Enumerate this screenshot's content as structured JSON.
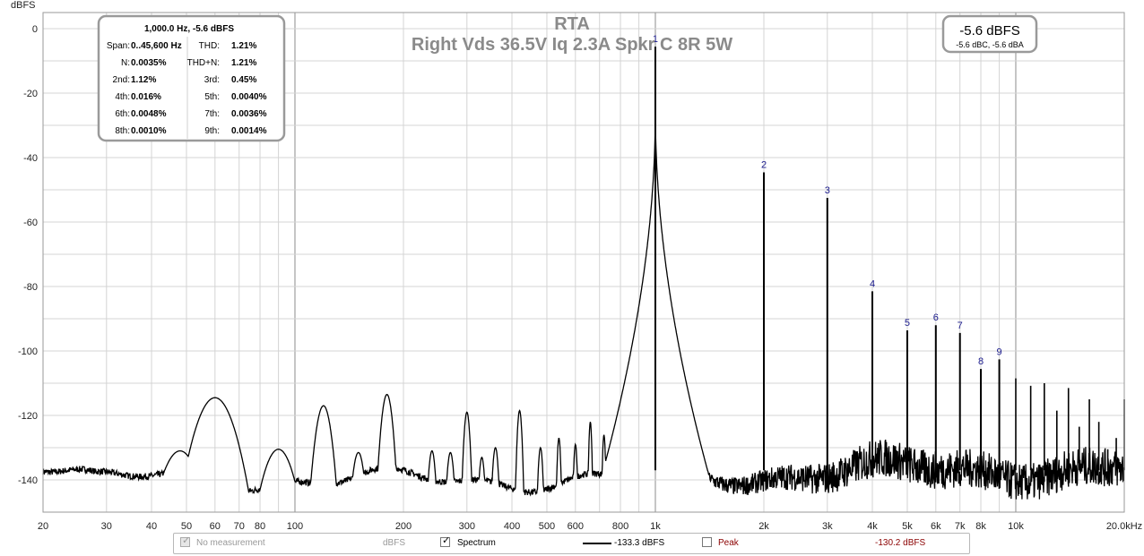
{
  "chart_data": {
    "type": "line",
    "title": "RTA",
    "subtitle": "Right Vds 36.5V Iq 2.3A Spkr C 8R 5W",
    "ylabel": "dBFS",
    "xlabel": "",
    "xscale": "log",
    "xlim": [
      20,
      20000
    ],
    "ylim": [
      -150,
      5
    ],
    "grid": true,
    "x_ticks": [
      {
        "v": 20,
        "label": "20"
      },
      {
        "v": 30,
        "label": "30"
      },
      {
        "v": 40,
        "label": "40"
      },
      {
        "v": 50,
        "label": "50"
      },
      {
        "v": 60,
        "label": "60"
      },
      {
        "v": 70,
        "label": "70"
      },
      {
        "v": 80,
        "label": "80"
      },
      {
        "v": 100,
        "label": "100"
      },
      {
        "v": 200,
        "label": "200"
      },
      {
        "v": 300,
        "label": "300"
      },
      {
        "v": 400,
        "label": "400"
      },
      {
        "v": 500,
        "label": "500"
      },
      {
        "v": 600,
        "label": "600"
      },
      {
        "v": 800,
        "label": "800"
      },
      {
        "v": 1000,
        "label": "1k"
      },
      {
        "v": 2000,
        "label": "2k"
      },
      {
        "v": 3000,
        "label": "3k"
      },
      {
        "v": 4000,
        "label": "4k"
      },
      {
        "v": 5000,
        "label": "5k"
      },
      {
        "v": 6000,
        "label": "6k"
      },
      {
        "v": 7000,
        "label": "7k"
      },
      {
        "v": 8000,
        "label": "8k"
      },
      {
        "v": 10000,
        "label": "10k"
      },
      {
        "v": 20000,
        "label": "20.0kHz"
      }
    ],
    "y_ticks": [
      {
        "v": 0,
        "label": "0"
      },
      {
        "v": -20,
        "label": "-20"
      },
      {
        "v": -40,
        "label": "-40"
      },
      {
        "v": -60,
        "label": "-60"
      },
      {
        "v": -80,
        "label": "-80"
      },
      {
        "v": -100,
        "label": "-100"
      },
      {
        "v": -120,
        "label": "-120"
      },
      {
        "v": -140,
        "label": "-140"
      }
    ],
    "harmonics": [
      {
        "n": "1",
        "freq": 1000,
        "level": -5.6
      },
      {
        "n": "2",
        "freq": 2000,
        "level": -44.6
      },
      {
        "n": "3",
        "freq": 3000,
        "level": -52.5
      },
      {
        "n": "4",
        "freq": 4000,
        "level": -81.5
      },
      {
        "n": "5",
        "freq": 5000,
        "level": -93.6
      },
      {
        "n": "6",
        "freq": 6000,
        "level": -92.0
      },
      {
        "n": "7",
        "freq": 7000,
        "level": -94.4
      },
      {
        "n": "8",
        "freq": 8000,
        "level": -105.6
      },
      {
        "n": "9",
        "freq": 9000,
        "level": -102.6
      }
    ],
    "higher_harmonics": [
      {
        "freq": 10000,
        "level": -108.5
      },
      {
        "freq": 11000,
        "level": -110.8
      },
      {
        "freq": 12000,
        "level": -110.0
      },
      {
        "freq": 13000,
        "level": -118.5
      },
      {
        "freq": 14000,
        "level": -111.5
      },
      {
        "freq": 15000,
        "level": -123.5
      },
      {
        "freq": 16000,
        "level": -115.0
      },
      {
        "freq": 17000,
        "level": -122.0
      },
      {
        "freq": 18000,
        "level": -130.5
      },
      {
        "freq": 19000,
        "level": -127.0
      },
      {
        "freq": 20000,
        "level": -115.0
      }
    ],
    "spurs": [
      {
        "freq": 60,
        "level": -114.5,
        "w": 0.06
      },
      {
        "freq": 48,
        "level": -131,
        "w": 0.06
      },
      {
        "freq": 90,
        "level": -130.5,
        "w": 0.05
      },
      {
        "freq": 120,
        "level": -117.0,
        "w": 0.025
      },
      {
        "freq": 150,
        "level": -131.5,
        "w": 0.02
      },
      {
        "freq": 180,
        "level": -113.5,
        "w": 0.018
      },
      {
        "freq": 240,
        "level": -131.0,
        "w": 0.012
      },
      {
        "freq": 270,
        "level": -131.5,
        "w": 0.012
      },
      {
        "freq": 300,
        "level": -119.0,
        "w": 0.01
      },
      {
        "freq": 330,
        "level": -133.0,
        "w": 0.01
      },
      {
        "freq": 360,
        "level": -130.0,
        "w": 0.01
      },
      {
        "freq": 420,
        "level": -118.5,
        "w": 0.008
      },
      {
        "freq": 480,
        "level": -130.0,
        "w": 0.008
      },
      {
        "freq": 540,
        "level": -127.0,
        "w": 0.006
      },
      {
        "freq": 600,
        "level": -129.0,
        "w": 0.006
      },
      {
        "freq": 660,
        "level": -122.0,
        "w": 0.005
      },
      {
        "freq": 720,
        "level": -126.0,
        "w": 0.005
      },
      {
        "freq": 780,
        "level": -121.0,
        "w": 0.005
      },
      {
        "freq": 840,
        "level": -127.0,
        "w": 0.004
      },
      {
        "freq": 900,
        "level": -120.5,
        "w": 0.004
      }
    ],
    "noise_floor": -140.0,
    "fundamental_readout": {
      "header": "1,000.0 Hz, -5.6 dBFS",
      "rows": [
        [
          {
            "label": "Span:",
            "value": "0..45,600 Hz"
          },
          {
            "label": "THD:",
            "value": "1.21%"
          }
        ],
        [
          {
            "label": "N:",
            "value": "0.0035%"
          },
          {
            "label": "THD+N:",
            "value": "1.21%"
          }
        ],
        [
          {
            "label": "2nd:",
            "value": "1.12%"
          },
          {
            "label": "3rd:",
            "value": "0.45%"
          }
        ],
        [
          {
            "label": "4th:",
            "value": "0.016%"
          },
          {
            "label": "5th:",
            "value": "0.0040%"
          }
        ],
        [
          {
            "label": "6th:",
            "value": "0.0048%"
          },
          {
            "label": "7th:",
            "value": "0.0036%"
          }
        ],
        [
          {
            "label": "8th:",
            "value": "0.0010%"
          },
          {
            "label": "9th:",
            "value": "0.0014%"
          }
        ]
      ]
    },
    "level_readout": {
      "main": "-5.6 dBFS",
      "sub": "-5.6 dBC, -5.6 dBA"
    },
    "line_color": "#000000"
  },
  "legend": {
    "no_measurement": {
      "label": "No measurement",
      "checked": true,
      "disabled": true,
      "unit": "dBFS"
    },
    "spectrum": {
      "label": "Spectrum",
      "checked": true,
      "value": "-133.3 dBFS",
      "color": "#000000"
    },
    "peak": {
      "label": "Peak",
      "checked": false,
      "value": "-130.2 dBFS",
      "color": "#8b0000"
    }
  }
}
